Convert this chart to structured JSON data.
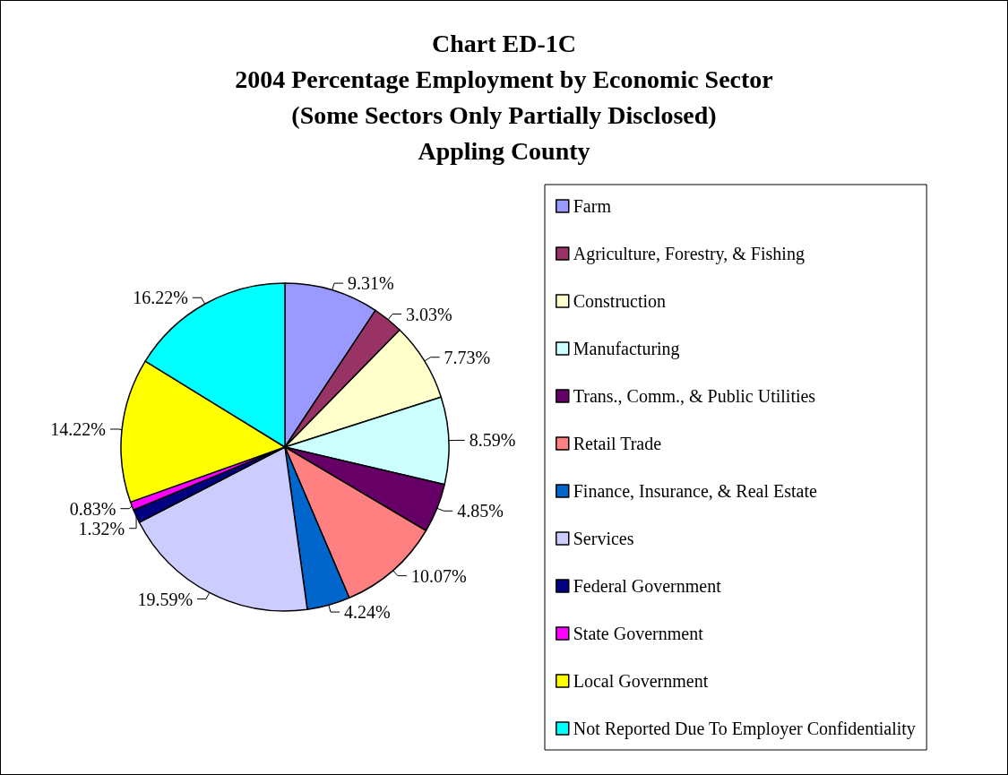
{
  "chart_data": {
    "type": "pie",
    "title": "Chart ED-1C\n2004 Percentage Employment by Economic Sector\n(Some Sectors Only Partially Disclosed)\nAppling County",
    "categories": [
      "Farm",
      "Agriculture, Forestry, & Fishing",
      "Construction",
      "Manufacturing",
      "Trans., Comm., & Public Utilities",
      "Retail Trade",
      "Finance, Insurance, & Real Estate",
      "Services",
      "Federal Government",
      "State Government",
      "Local Government",
      "Not Reported Due To Employer Confidentiality"
    ],
    "values": [
      9.31,
      3.03,
      7.73,
      8.59,
      4.85,
      10.07,
      4.24,
      19.59,
      1.32,
      0.83,
      14.22,
      16.22
    ],
    "value_labels": [
      "9.31%",
      "3.03%",
      "7.73%",
      "8.59%",
      "4.85%",
      "10.07%",
      "4.24%",
      "19.59%",
      "1.32%",
      "0.83%",
      "14.22%",
      "16.22%"
    ],
    "colors": [
      "#9999ff",
      "#993366",
      "#ffffcc",
      "#ccffff",
      "#660066",
      "#ff8080",
      "#0066cc",
      "#ccccff",
      "#000080",
      "#ff00ff",
      "#ffff00",
      "#00ffff"
    ],
    "legend": "right"
  }
}
